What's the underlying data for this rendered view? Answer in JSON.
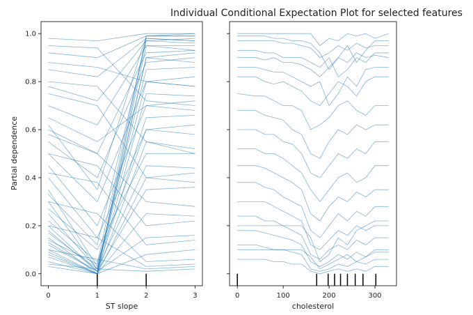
{
  "chart_data": [
    {
      "type": "line",
      "title": "Individual Conditional Expectation Plot for selected features",
      "xlabel": "ST slope",
      "ylabel": "Partial dependence",
      "x": [
        0,
        1,
        2,
        3
      ],
      "xticks": [
        "0",
        "1",
        "2",
        "3"
      ],
      "yticks": [
        "0.0",
        "0.2",
        "0.4",
        "0.6",
        "0.8",
        "1.0"
      ],
      "xlim": [
        -0.15,
        3.15
      ],
      "ylim": [
        -0.05,
        1.05
      ],
      "rug_deciles": [
        1,
        2
      ],
      "color": "#1f77b4",
      "lines": [
        [
          0.98,
          0.97,
          1.0,
          1.0
        ],
        [
          0.92,
          0.9,
          0.99,
          0.99
        ],
        [
          0.85,
          0.82,
          0.98,
          0.97
        ],
        [
          0.78,
          0.72,
          0.97,
          0.96
        ],
        [
          0.7,
          0.62,
          0.95,
          0.95
        ],
        [
          0.15,
          0.0,
          0.98,
          0.97
        ],
        [
          0.12,
          0.01,
          0.95,
          0.93
        ],
        [
          0.25,
          0.02,
          0.9,
          0.88
        ],
        [
          0.35,
          0.03,
          0.85,
          0.86
        ],
        [
          0.1,
          0.0,
          0.75,
          0.74
        ],
        [
          0.2,
          0.01,
          0.65,
          0.66
        ],
        [
          0.08,
          0.0,
          0.55,
          0.52
        ],
        [
          0.3,
          0.02,
          0.45,
          0.44
        ],
        [
          0.18,
          0.01,
          0.35,
          0.36
        ],
        [
          0.05,
          0.0,
          0.25,
          0.24
        ],
        [
          0.13,
          0.01,
          0.15,
          0.16
        ],
        [
          0.09,
          0.0,
          0.08,
          0.1
        ],
        [
          0.22,
          0.05,
          0.6,
          0.58
        ],
        [
          0.6,
          0.5,
          0.92,
          0.93
        ],
        [
          0.55,
          0.4,
          0.88,
          0.9
        ],
        [
          0.5,
          0.3,
          0.8,
          0.78
        ],
        [
          0.45,
          0.2,
          0.7,
          0.72
        ],
        [
          0.4,
          0.15,
          0.6,
          0.62
        ],
        [
          0.65,
          0.55,
          0.7,
          0.68
        ],
        [
          0.88,
          0.86,
          0.8,
          0.78
        ],
        [
          0.8,
          0.78,
          0.55,
          0.5
        ],
        [
          0.95,
          0.94,
          0.72,
          0.7
        ],
        [
          0.75,
          0.7,
          0.4,
          0.42
        ],
        [
          0.58,
          0.5,
          0.3,
          0.28
        ],
        [
          0.5,
          0.45,
          0.2,
          0.22
        ],
        [
          0.42,
          0.38,
          0.12,
          0.14
        ],
        [
          0.3,
          0.25,
          0.05,
          0.06
        ],
        [
          0.2,
          0.15,
          0.03,
          0.04
        ],
        [
          0.1,
          0.06,
          0.02,
          0.03
        ],
        [
          0.04,
          0.02,
          0.01,
          0.02
        ],
        [
          0.27,
          0.1,
          0.5,
          0.5
        ],
        [
          0.33,
          0.12,
          0.97,
          0.98
        ],
        [
          0.14,
          0.04,
          0.99,
          1.0
        ],
        [
          0.07,
          0.0,
          0.9,
          0.92
        ],
        [
          0.17,
          0.02,
          0.8,
          0.82
        ],
        [
          0.03,
          0.0,
          0.4,
          0.38
        ],
        [
          0.62,
          0.35,
          0.99,
          0.99
        ]
      ]
    },
    {
      "type": "line",
      "xlabel": "cholesterol",
      "x": [
        0,
        40,
        60,
        80,
        100,
        120,
        140,
        160,
        180,
        200,
        220,
        240,
        260,
        280,
        300,
        330
      ],
      "xticks": [
        "0",
        "100",
        "200",
        "300"
      ],
      "xtick_values": [
        0,
        100,
        200,
        300
      ],
      "xlim": [
        -17,
        347
      ],
      "ylim": [
        -0.05,
        1.05
      ],
      "rug_deciles": [
        0,
        173,
        198,
        212,
        225,
        240,
        257,
        274,
        302
      ],
      "color": "#1f77b4",
      "lines": [
        [
          1,
          1,
          1,
          1,
          1,
          1,
          1,
          1,
          0.95,
          0.98,
          0.97,
          1,
          0.99,
          1,
          0.98,
          1
        ],
        [
          0.97,
          0.97,
          0.97,
          0.97,
          0.96,
          0.96,
          0.95,
          0.94,
          0.9,
          0.92,
          0.95,
          0.93,
          0.96,
          0.94,
          0.95,
          0.95
        ],
        [
          0.9,
          0.9,
          0.89,
          0.9,
          0.88,
          0.88,
          0.87,
          0.85,
          0.82,
          0.86,
          0.9,
          0.88,
          0.92,
          0.9,
          0.91,
          0.9
        ],
        [
          0.82,
          0.82,
          0.8,
          0.79,
          0.8,
          0.78,
          0.76,
          0.72,
          0.7,
          0.75,
          0.8,
          0.78,
          0.74,
          0.8,
          0.82,
          0.82
        ],
        [
          0.75,
          0.74,
          0.74,
          0.72,
          0.7,
          0.7,
          0.68,
          0.6,
          0.62,
          0.65,
          0.7,
          0.72,
          0.68,
          0.66,
          0.7,
          0.7
        ],
        [
          0.68,
          0.68,
          0.66,
          0.65,
          0.64,
          0.6,
          0.58,
          0.5,
          0.48,
          0.55,
          0.6,
          0.58,
          0.62,
          0.6,
          0.62,
          0.62
        ],
        [
          0.6,
          0.6,
          0.58,
          0.58,
          0.55,
          0.54,
          0.5,
          0.42,
          0.4,
          0.45,
          0.5,
          0.48,
          0.52,
          0.5,
          0.55,
          0.55
        ],
        [
          0.52,
          0.52,
          0.5,
          0.5,
          0.48,
          0.45,
          0.42,
          0.35,
          0.3,
          0.35,
          0.4,
          0.42,
          0.38,
          0.4,
          0.45,
          0.45
        ],
        [
          0.45,
          0.45,
          0.44,
          0.42,
          0.4,
          0.38,
          0.35,
          0.25,
          0.22,
          0.28,
          0.32,
          0.3,
          0.34,
          0.32,
          0.35,
          0.35
        ],
        [
          0.38,
          0.38,
          0.36,
          0.35,
          0.32,
          0.3,
          0.28,
          0.18,
          0.15,
          0.2,
          0.25,
          0.22,
          0.26,
          0.24,
          0.28,
          0.28
        ],
        [
          0.3,
          0.3,
          0.3,
          0.28,
          0.26,
          0.24,
          0.22,
          0.12,
          0.1,
          0.14,
          0.18,
          0.16,
          0.2,
          0.18,
          0.2,
          0.2
        ],
        [
          0.24,
          0.24,
          0.22,
          0.22,
          0.2,
          0.18,
          0.16,
          0.08,
          0.06,
          0.1,
          0.12,
          0.1,
          0.14,
          0.12,
          0.15,
          0.15
        ],
        [
          0.18,
          0.18,
          0.17,
          0.16,
          0.15,
          0.14,
          0.12,
          0.05,
          0.03,
          0.05,
          0.08,
          0.06,
          0.09,
          0.07,
          0.1,
          0.1
        ],
        [
          0.12,
          0.12,
          0.11,
          0.1,
          0.1,
          0.09,
          0.08,
          0.02,
          0.01,
          0.02,
          0.04,
          0.03,
          0.05,
          0.04,
          0.06,
          0.06
        ],
        [
          0.06,
          0.06,
          0.06,
          0.05,
          0.05,
          0.04,
          0.04,
          0.01,
          0.0,
          0.01,
          0.02,
          0.01,
          0.02,
          0.01,
          0.03,
          0.03
        ],
        [
          0.99,
          0.99,
          0.99,
          0.98,
          0.98,
          0.97,
          0.97,
          0.96,
          0.92,
          0.85,
          0.9,
          0.95,
          0.88,
          0.93,
          0.97,
          0.97
        ],
        [
          0.93,
          0.93,
          0.92,
          0.92,
          0.9,
          0.9,
          0.9,
          0.88,
          0.86,
          0.9,
          0.82,
          0.85,
          0.9,
          0.88,
          0.92,
          0.92
        ],
        [
          0.86,
          0.86,
          0.85,
          0.84,
          0.84,
          0.82,
          0.8,
          0.78,
          0.8,
          0.7,
          0.75,
          0.82,
          0.78,
          0.85,
          0.86,
          0.86
        ],
        [
          0.2,
          0.2,
          0.2,
          0.2,
          0.2,
          0.2,
          0.2,
          0.15,
          0.05,
          0.08,
          0.15,
          0.12,
          0.18,
          0.2,
          0.22,
          0.22
        ],
        [
          0.1,
          0.1,
          0.1,
          0.1,
          0.1,
          0.1,
          0.1,
          0.07,
          0.02,
          0.04,
          0.06,
          0.08,
          0.05,
          0.07,
          0.09,
          0.09
        ]
      ]
    }
  ]
}
